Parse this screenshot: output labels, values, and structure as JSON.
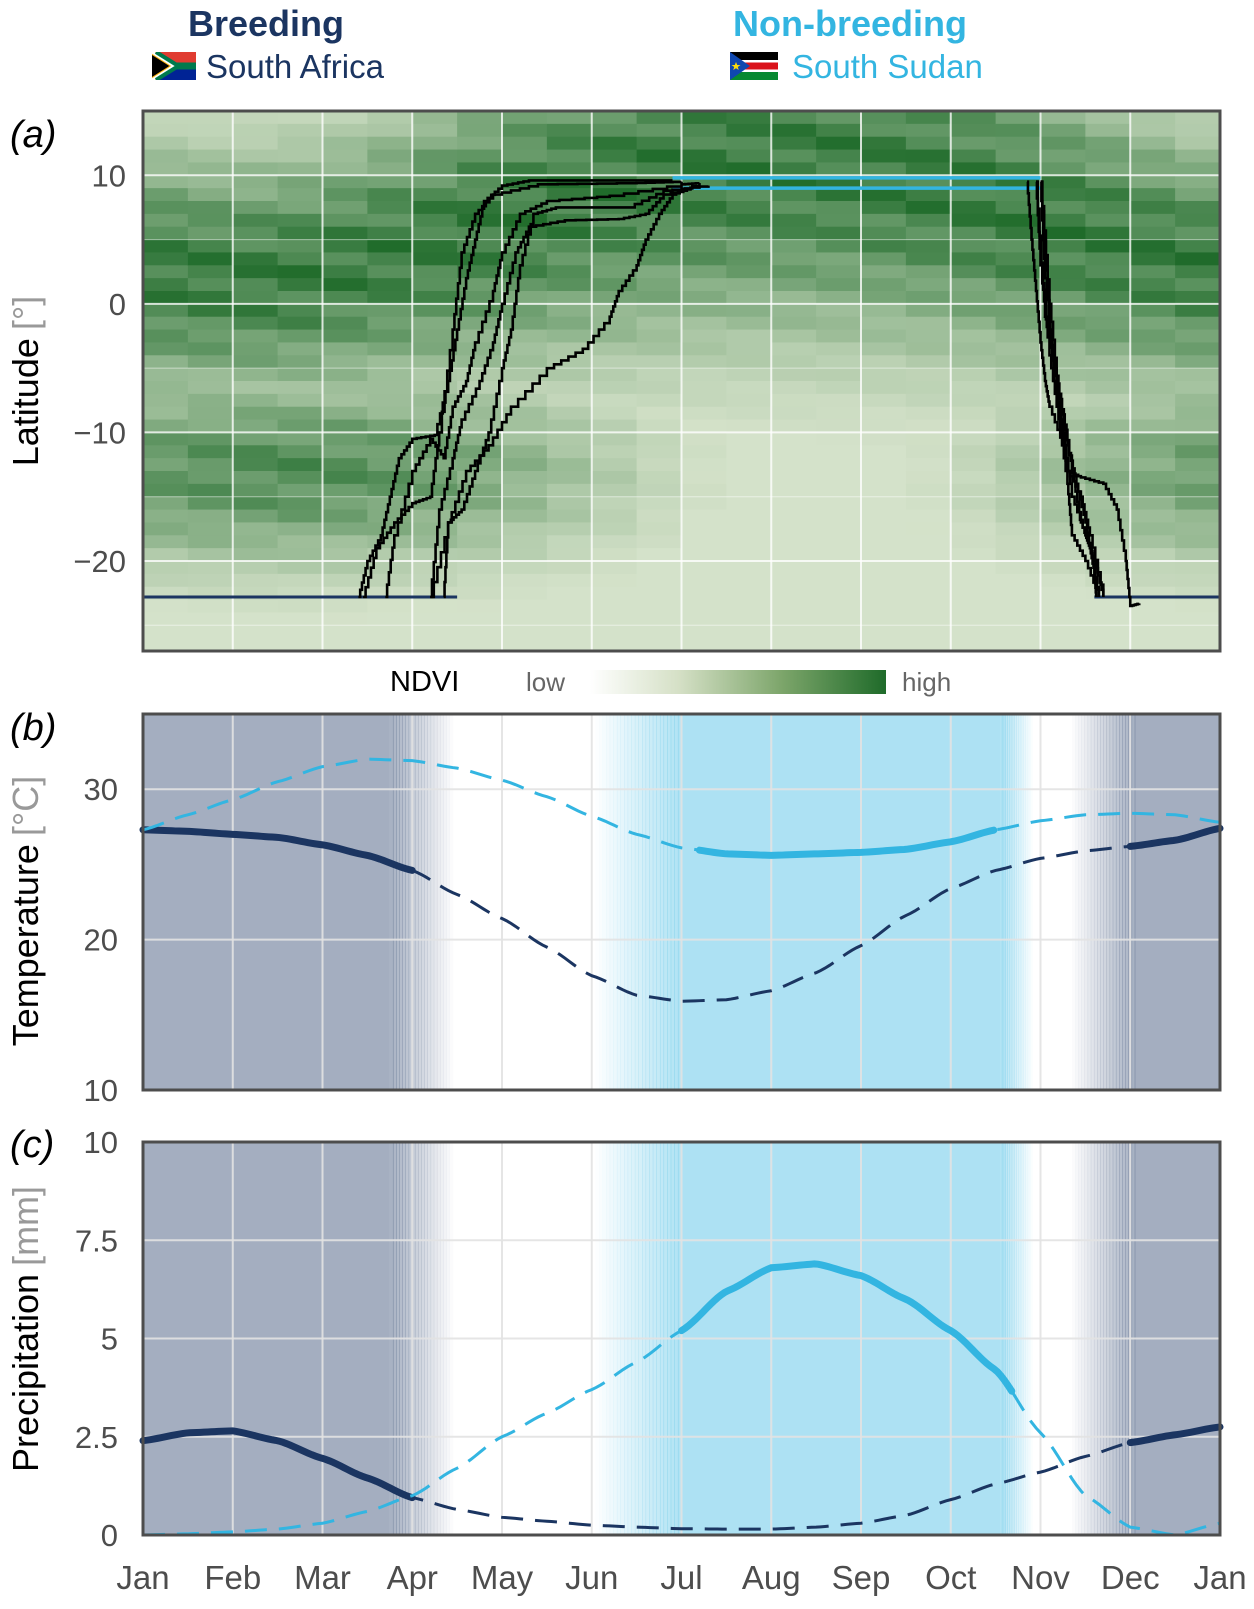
{
  "legend": {
    "breeding": {
      "title": "Breeding",
      "country": "South Africa",
      "color": "#1b3561"
    },
    "nonbreeding": {
      "title": "Non-breeding",
      "country": "South Sudan",
      "color": "#33b5e1"
    }
  },
  "colors": {
    "breeding": "#1b3561",
    "nonbreeding": "#33b5e1",
    "track": "#000000",
    "ndvi_low": "#f4f6f0",
    "ndvi_high": "#1f6b2a"
  },
  "months": [
    "Jan",
    "Feb",
    "Mar",
    "Apr",
    "May",
    "Jun",
    "Jul",
    "Aug",
    "Sep",
    "Oct",
    "Nov",
    "Dec",
    "Jan"
  ],
  "chart_data": [
    {
      "type": "heatmap",
      "panel": "(a)",
      "ylabel": "Latitude",
      "yunit": "[°]",
      "ylim": [
        -27,
        15
      ],
      "yticks": [
        "10",
        "0",
        "−10",
        "−20"
      ],
      "ytick_values": [
        10,
        0,
        -10,
        -20
      ],
      "colorbar": {
        "label": "NDVI",
        "low": "low",
        "high": "high"
      },
      "breeding_latitude": -22.8,
      "nonbreeding_latitude": [
        9.0,
        9.8
      ],
      "departure_breeding_month": [
        2.7,
        3.5
      ],
      "arrival_nonbreeding_month": [
        5.9,
        6.5
      ],
      "departure_nonbreeding_month": [
        9.85,
        10.0
      ],
      "arrival_breeding_month": [
        10.6,
        11.0
      ],
      "tracks_spring": [
        [
          [
            2.4,
            -22.8
          ],
          [
            2.5,
            -20
          ],
          [
            2.65,
            -18
          ],
          [
            2.75,
            -15
          ],
          [
            2.85,
            -12
          ],
          [
            3.0,
            -10.5
          ],
          [
            3.25,
            -10.2
          ],
          [
            3.4,
            -6
          ],
          [
            3.5,
            -2
          ],
          [
            3.6,
            2
          ],
          [
            3.7,
            5
          ],
          [
            3.8,
            8
          ],
          [
            4.0,
            9.2
          ],
          [
            4.3,
            9.6
          ],
          [
            5.0,
            9.6
          ],
          [
            5.9,
            9.6
          ]
        ],
        [
          [
            2.45,
            -22.8
          ],
          [
            2.6,
            -19
          ],
          [
            2.8,
            -17
          ],
          [
            3.0,
            -15.5
          ],
          [
            3.2,
            -15
          ],
          [
            3.3,
            -10
          ],
          [
            3.45,
            -2
          ],
          [
            3.55,
            4
          ],
          [
            3.7,
            7
          ],
          [
            3.9,
            8.5
          ],
          [
            4.4,
            9.3
          ],
          [
            5.5,
            9.4
          ],
          [
            6.0,
            9.5
          ]
        ],
        [
          [
            2.7,
            -22.8
          ],
          [
            2.8,
            -18
          ],
          [
            3.0,
            -13
          ],
          [
            3.2,
            -10.5
          ],
          [
            3.35,
            -12
          ],
          [
            3.45,
            -8
          ],
          [
            3.6,
            -6
          ],
          [
            3.7,
            -3
          ],
          [
            3.9,
            1
          ],
          [
            4.0,
            4
          ],
          [
            4.2,
            7
          ],
          [
            4.5,
            8
          ],
          [
            5.2,
            8.4
          ],
          [
            6.0,
            9.3
          ],
          [
            6.2,
            9.4
          ]
        ],
        [
          [
            3.35,
            -22.8
          ],
          [
            3.4,
            -17
          ],
          [
            3.55,
            -16
          ],
          [
            3.7,
            -13
          ],
          [
            3.85,
            -10
          ],
          [
            4.0,
            -5
          ],
          [
            4.1,
            -2
          ],
          [
            4.2,
            3
          ],
          [
            4.35,
            7
          ],
          [
            4.6,
            7.5
          ],
          [
            5.4,
            7.5
          ],
          [
            5.8,
            8.8
          ],
          [
            6.3,
            9.2
          ]
        ],
        [
          [
            3.2,
            -22.8
          ],
          [
            3.3,
            -16
          ],
          [
            3.45,
            -12
          ],
          [
            3.55,
            -9
          ],
          [
            3.75,
            -6
          ],
          [
            3.9,
            -3
          ],
          [
            4.0,
            0
          ],
          [
            4.15,
            4
          ],
          [
            4.3,
            6
          ],
          [
            4.7,
            6.5
          ],
          [
            5.3,
            6.6
          ],
          [
            5.6,
            7
          ],
          [
            5.8,
            8.5
          ],
          [
            6.2,
            9.3
          ]
        ],
        [
          [
            3.2,
            -22.8
          ],
          [
            3.4,
            -17
          ],
          [
            3.6,
            -13
          ],
          [
            3.85,
            -11
          ],
          [
            4.1,
            -8
          ],
          [
            4.5,
            -5
          ],
          [
            4.9,
            -3.5
          ],
          [
            5.2,
            -1
          ],
          [
            5.3,
            1
          ],
          [
            5.5,
            3
          ],
          [
            5.6,
            5
          ],
          [
            5.75,
            7
          ],
          [
            5.9,
            8.5
          ],
          [
            6.1,
            9.0
          ]
        ]
      ],
      "tracks_autumn": [
        [
          [
            9.85,
            9.5
          ],
          [
            9.9,
            5
          ],
          [
            9.95,
            1
          ],
          [
            10.0,
            -3
          ],
          [
            10.05,
            -6
          ],
          [
            10.1,
            -8
          ],
          [
            10.25,
            -11
          ],
          [
            10.3,
            -13
          ],
          [
            10.45,
            -13.5
          ],
          [
            10.7,
            -14
          ],
          [
            10.85,
            -16
          ],
          [
            10.95,
            -20
          ],
          [
            11.0,
            -23.5
          ],
          [
            11.1,
            -23.3
          ]
        ],
        [
          [
            9.95,
            9.5
          ],
          [
            10.0,
            3
          ],
          [
            10.1,
            -4
          ],
          [
            10.2,
            -9
          ],
          [
            10.3,
            -14
          ],
          [
            10.35,
            -18
          ],
          [
            10.5,
            -20
          ],
          [
            10.65,
            -22.8
          ]
        ],
        [
          [
            10.0,
            9.5
          ],
          [
            10.05,
            2
          ],
          [
            10.15,
            -6
          ],
          [
            10.25,
            -10
          ],
          [
            10.35,
            -15
          ],
          [
            10.5,
            -18
          ],
          [
            10.6,
            -20
          ],
          [
            10.7,
            -22.8
          ]
        ],
        [
          [
            10.0,
            9.5
          ],
          [
            10.1,
            0
          ],
          [
            10.2,
            -7
          ],
          [
            10.35,
            -13
          ],
          [
            10.45,
            -17
          ],
          [
            10.55,
            -19
          ],
          [
            10.65,
            -22.8
          ]
        ],
        [
          [
            9.95,
            9.5
          ],
          [
            10.05,
            -1
          ],
          [
            10.15,
            -5
          ],
          [
            10.3,
            -11
          ],
          [
            10.4,
            -14
          ],
          [
            10.5,
            -17
          ],
          [
            10.6,
            -21
          ],
          [
            10.62,
            -22.8
          ]
        ],
        [
          [
            10.0,
            9.5
          ],
          [
            10.1,
            -2
          ],
          [
            10.2,
            -8
          ],
          [
            10.3,
            -13
          ],
          [
            10.45,
            -15
          ],
          [
            10.55,
            -18
          ],
          [
            10.7,
            -22.8
          ]
        ]
      ]
    },
    {
      "type": "line",
      "panel": "(b)",
      "ylabel": "Temperature",
      "yunit": "[°C]",
      "ylim": [
        10,
        35
      ],
      "yticks": [
        "10",
        "20",
        "30"
      ],
      "ytick_values": [
        10,
        20,
        30
      ],
      "x": [
        0,
        0.5,
        1,
        1.5,
        2,
        2.5,
        3,
        3.5,
        4,
        4.5,
        5,
        5.5,
        6,
        6.5,
        7,
        7.5,
        8,
        8.5,
        9,
        9.5,
        10,
        10.5,
        11,
        11.5,
        12
      ],
      "series": [
        {
          "key": "breeding",
          "values": [
            27.3,
            27.2,
            27.0,
            26.8,
            26.3,
            25.6,
            24.6,
            23.0,
            21.4,
            19.5,
            17.6,
            16.3,
            15.9,
            16.0,
            16.6,
            17.8,
            19.6,
            21.6,
            23.4,
            24.6,
            25.4,
            25.9,
            26.2,
            26.6,
            27.4
          ],
          "solid_ranges": [
            [
              0,
              3
            ],
            [
              11,
              12
            ]
          ]
        },
        {
          "key": "nonbreeding",
          "values": [
            27.3,
            28.3,
            29.3,
            30.5,
            31.5,
            32.0,
            31.9,
            31.4,
            30.6,
            29.5,
            28.2,
            27.0,
            26.1,
            25.7,
            25.6,
            25.7,
            25.8,
            26.0,
            26.5,
            27.3,
            27.9,
            28.3,
            28.4,
            28.3,
            27.8
          ],
          "solid_ranges": [
            [
              6.2,
              9.5
            ]
          ]
        }
      ]
    },
    {
      "type": "line",
      "panel": "(c)",
      "ylabel": "Precipitation",
      "yunit": "[mm]",
      "ylim": [
        0,
        10
      ],
      "yticks": [
        "0",
        "2.5",
        "5",
        "7.5",
        "10"
      ],
      "ytick_values": [
        0,
        2.5,
        5,
        7.5,
        10
      ],
      "xlabels": [
        "Jan",
        "Feb",
        "Mar",
        "Apr",
        "May",
        "Jun",
        "Jul",
        "Aug",
        "Sep",
        "Oct",
        "Nov",
        "Dec",
        "Jan"
      ],
      "x": [
        0,
        0.5,
        1,
        1.5,
        2,
        2.5,
        3,
        3.5,
        4,
        4.5,
        5,
        5.5,
        6,
        6.5,
        7,
        7.5,
        8,
        8.5,
        9,
        9.5,
        10,
        10.5,
        11,
        11.5,
        12
      ],
      "series": [
        {
          "key": "breeding",
          "values": [
            2.4,
            2.6,
            2.65,
            2.4,
            1.95,
            1.45,
            0.95,
            0.65,
            0.45,
            0.35,
            0.25,
            0.2,
            0.16,
            0.15,
            0.15,
            0.2,
            0.3,
            0.5,
            0.9,
            1.3,
            1.6,
            2.0,
            2.35,
            2.55,
            2.75
          ],
          "solid_ranges": [
            [
              0,
              3
            ],
            [
              11,
              12
            ]
          ]
        },
        {
          "key": "nonbreeding",
          "values": [
            0.0,
            0.03,
            0.08,
            0.15,
            0.3,
            0.6,
            1.0,
            1.7,
            2.5,
            3.1,
            3.7,
            4.4,
            5.2,
            6.2,
            6.8,
            6.9,
            6.6,
            6.0,
            5.2,
            4.2,
            2.6,
            1.0,
            0.2,
            0.0,
            0.3
          ],
          "solid_ranges": [
            [
              6.0,
              9.7
            ]
          ]
        }
      ]
    }
  ]
}
